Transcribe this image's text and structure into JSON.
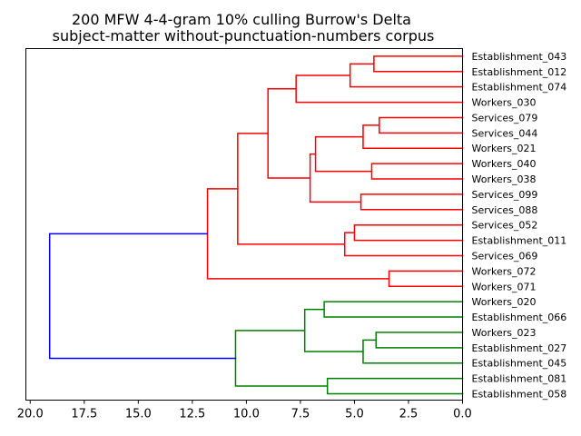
{
  "chart_data": {
    "type": "dendrogram",
    "title_line1": "200 MFW 4-4-gram 10% culling Burrow's Delta",
    "title_line2": "subject-matter without-punctuation-numbers corpus",
    "orientation": "left",
    "xlim": [
      20.2,
      0.0
    ],
    "xticks": [
      20.0,
      17.5,
      15.0,
      12.5,
      10.0,
      7.5,
      5.0,
      2.5,
      0.0
    ],
    "xtick_labels": [
      "20.0",
      "17.5",
      "15.0",
      "12.5",
      "10.0",
      "7.5",
      "5.0",
      "2.5",
      "0.0"
    ],
    "grid": false,
    "leaves": [
      "Establishment_043",
      "Establishment_012",
      "Establishment_074",
      "Workers_030",
      "Services_079",
      "Services_044",
      "Workers_021",
      "Workers_040",
      "Workers_038",
      "Services_099",
      "Services_088",
      "Services_052",
      "Establishment_011",
      "Services_069",
      "Workers_072",
      "Workers_071",
      "Workers_020",
      "Establishment_066",
      "Workers_023",
      "Establishment_027",
      "Establishment_045",
      "Establishment_081",
      "Establishment_058"
    ],
    "colors": {
      "cluster_red": "#ff0000",
      "cluster_green": "#008000",
      "root_blue": "#0000ff"
    },
    "merges": [
      {
        "a": "L0",
        "b": "L1",
        "height": 4.1,
        "color": "cluster_red"
      },
      {
        "a": "M0",
        "b": "L2",
        "height": 5.2,
        "color": "cluster_red"
      },
      {
        "a": "M1",
        "b": "L3",
        "height": 7.7,
        "color": "cluster_red"
      },
      {
        "a": "L4",
        "b": "L5",
        "height": 3.85,
        "color": "cluster_red"
      },
      {
        "a": "M3",
        "b": "L6",
        "height": 4.6,
        "color": "cluster_red"
      },
      {
        "a": "L7",
        "b": "L8",
        "height": 4.2,
        "color": "cluster_red"
      },
      {
        "a": "M4",
        "b": "M5",
        "height": 6.8,
        "color": "cluster_red"
      },
      {
        "a": "L9",
        "b": "L10",
        "height": 4.7,
        "color": "cluster_red"
      },
      {
        "a": "M6",
        "b": "M7",
        "height": 7.05,
        "color": "cluster_red"
      },
      {
        "a": "M2",
        "b": "M8",
        "height": 9.0,
        "color": "cluster_red"
      },
      {
        "a": "L11",
        "b": "L12",
        "height": 5.0,
        "color": "cluster_red"
      },
      {
        "a": "M10",
        "b": "L13",
        "height": 5.45,
        "color": "cluster_red"
      },
      {
        "a": "M9",
        "b": "M11",
        "height": 10.4,
        "color": "cluster_red"
      },
      {
        "a": "L14",
        "b": "L15",
        "height": 3.4,
        "color": "cluster_red"
      },
      {
        "a": "M12",
        "b": "M13",
        "height": 11.8,
        "color": "cluster_red"
      },
      {
        "a": "L16",
        "b": "L17",
        "height": 6.4,
        "color": "cluster_green"
      },
      {
        "a": "L18",
        "b": "L19",
        "height": 4.0,
        "color": "cluster_green"
      },
      {
        "a": "M16",
        "b": "L20",
        "height": 4.6,
        "color": "cluster_green"
      },
      {
        "a": "M15",
        "b": "M17",
        "height": 7.3,
        "color": "cluster_green"
      },
      {
        "a": "L21",
        "b": "L22",
        "height": 6.25,
        "color": "cluster_green"
      },
      {
        "a": "M18",
        "b": "M19",
        "height": 10.5,
        "color": "cluster_green"
      },
      {
        "a": "M14",
        "b": "M20",
        "height": 19.1,
        "color": "root_blue"
      }
    ]
  }
}
